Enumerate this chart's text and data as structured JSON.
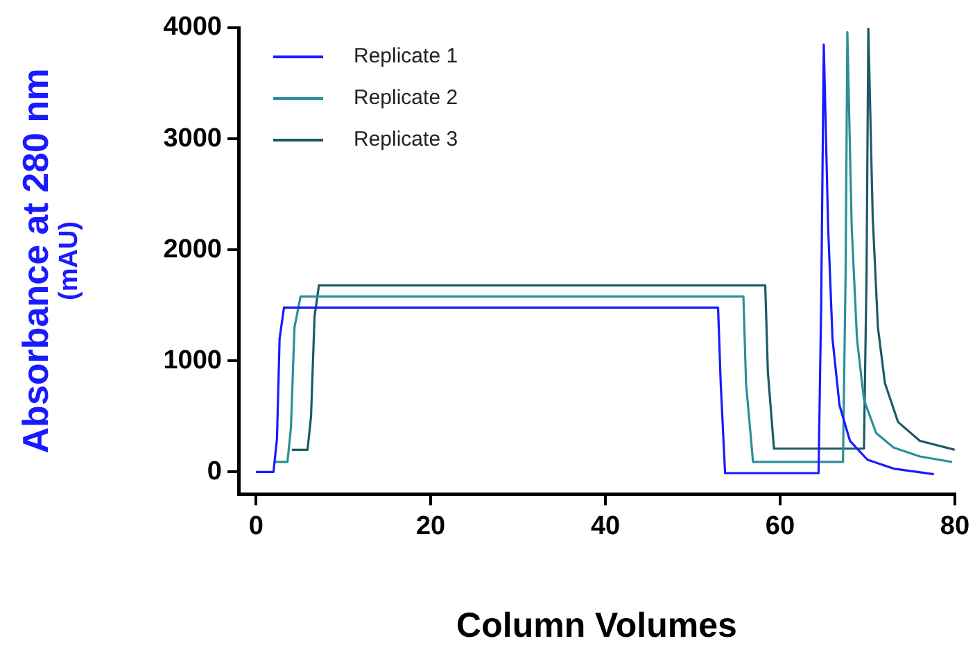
{
  "chart_data": {
    "type": "line",
    "xlabel": "Column Volumes",
    "ylabel": "Absorbance at 280 nm\n(mAU)",
    "xlim": [
      -2,
      80
    ],
    "ylim": [
      -200,
      4000
    ],
    "xticks": [
      0,
      20,
      40,
      60,
      80
    ],
    "yticks": [
      0,
      1000,
      2000,
      3000,
      4000
    ],
    "grid": false,
    "legend": "top left",
    "marker": "none",
    "line_style": "solid",
    "series": [
      {
        "name": "Replicate 1",
        "color": "#1a1aff",
        "x": [
          0,
          2.0,
          2.4,
          2.7,
          3.2,
          52.9,
          53.2,
          53.7,
          64.4,
          64.7,
          65.0,
          65.5,
          66.0,
          66.8,
          68,
          70,
          73,
          77.6
        ],
        "values": [
          0,
          0,
          300,
          1200,
          1480,
          1480,
          800,
          -10,
          -10,
          1500,
          3850,
          2200,
          1200,
          600,
          280,
          110,
          30,
          -20
        ]
      },
      {
        "name": "Replicate 2",
        "color": "#2b8f9a",
        "x": [
          2.2,
          3.6,
          4.0,
          4.4,
          5.1,
          55.8,
          56.1,
          56.9,
          67.2,
          67.5,
          67.7,
          68.2,
          68.8,
          69.6,
          71,
          73,
          76,
          79.7
        ],
        "values": [
          90,
          90,
          400,
          1300,
          1580,
          1580,
          800,
          90,
          90,
          1800,
          3960,
          2200,
          1200,
          650,
          350,
          220,
          140,
          90
        ]
      },
      {
        "name": "Replicate 3",
        "color": "#1d5a66",
        "x": [
          4.1,
          5.9,
          6.3,
          6.7,
          7.2,
          58.3,
          58.6,
          59.3,
          69.6,
          69.9,
          70.1,
          70.6,
          71.2,
          72,
          73.5,
          76,
          80
        ],
        "values": [
          200,
          200,
          500,
          1400,
          1680,
          1680,
          900,
          210,
          210,
          1800,
          4000,
          2300,
          1300,
          800,
          450,
          280,
          200
        ]
      }
    ]
  }
}
